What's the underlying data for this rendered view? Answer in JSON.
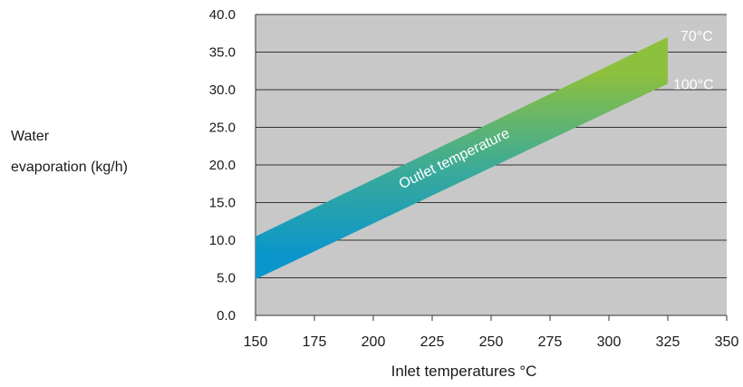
{
  "chart_data": {
    "type": "area",
    "title": "",
    "xlabel": "Inlet temperatures °C",
    "ylabel_lines": [
      "Water",
      "evaporation (kg/h)"
    ],
    "x_ticks": [
      "150",
      "175",
      "200",
      "225",
      "250",
      "275",
      "300",
      "325",
      "350"
    ],
    "y_ticks": [
      "0.0",
      "5.0",
      "10.0",
      "15.0",
      "20.0",
      "25.0",
      "30.0",
      "35.0",
      "40.0"
    ],
    "xlim": [
      150,
      350
    ],
    "ylim": [
      0,
      40
    ],
    "grid": "horizontal",
    "plot_background": "#c8c8c8",
    "band": {
      "label": "Outlet temperature",
      "x": [
        150,
        325
      ],
      "upper": {
        "name": "70°C",
        "values": [
          10.5,
          37.0
        ]
      },
      "lower": {
        "name": "100°C",
        "values": [
          4.8,
          30.8
        ]
      },
      "colors": {
        "top": "#8dc03d",
        "bottom": "#0a96cc"
      }
    }
  }
}
